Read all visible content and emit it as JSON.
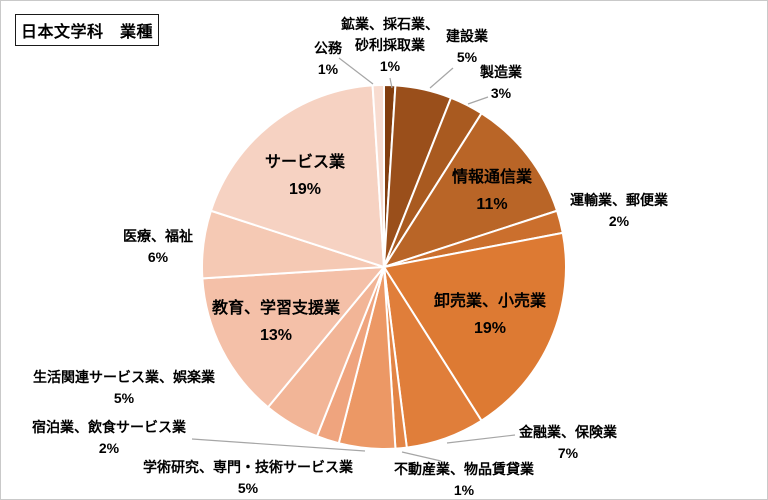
{
  "title": "日本文学科　業種",
  "chart_data": {
    "type": "pie",
    "title": "日本文学科　業種",
    "unit": "%",
    "total_percent": 100,
    "start_angle_deg": 0,
    "direction": "clockwise",
    "gap_stroke_color": "#ffffff",
    "leader_line_color": "#a6a6a6",
    "slices": [
      {
        "label": "鉱業、採石業、砂利採取業",
        "label_lines": [
          "鉱業、採石業、",
          "砂利採取業"
        ],
        "value": 1,
        "pct_label": "1%",
        "color": "#823d0e",
        "label_position": "outside"
      },
      {
        "label": "建設業",
        "value": 5,
        "pct_label": "5%",
        "color": "#9a4f1b",
        "label_position": "outside"
      },
      {
        "label": "製造業",
        "value": 3,
        "pct_label": "3%",
        "color": "#a95a20",
        "label_position": "outside"
      },
      {
        "label": "情報通信業",
        "value": 11,
        "pct_label": "11%",
        "color": "#b96527",
        "label_position": "inside"
      },
      {
        "label": "運輸業、郵便業",
        "value": 2,
        "pct_label": "2%",
        "color": "#cb6f2d",
        "label_position": "outside"
      },
      {
        "label": "卸売業、小売業",
        "value": 19,
        "pct_label": "19%",
        "color": "#dd7a33",
        "label_position": "inside"
      },
      {
        "label": "金融業、保険業",
        "value": 7,
        "pct_label": "7%",
        "color": "#e07e3a",
        "label_position": "outside"
      },
      {
        "label": "不動産業、物品賃貸業",
        "value": 1,
        "pct_label": "1%",
        "color": "#e38546",
        "label_position": "outside"
      },
      {
        "label": "学術研究、専門・技術サービス業",
        "value": 5,
        "pct_label": "5%",
        "color": "#ec9865",
        "label_position": "outside"
      },
      {
        "label": "宿泊業、飲食サービス業",
        "value": 2,
        "pct_label": "2%",
        "color": "#efa47e",
        "label_position": "outside"
      },
      {
        "label": "生活関連サービス業、娯楽業",
        "value": 5,
        "pct_label": "5%",
        "color": "#f2b597",
        "label_position": "outside"
      },
      {
        "label": "教育、学習支援業",
        "value": 13,
        "pct_label": "13%",
        "color": "#f4c0a8",
        "label_position": "inside"
      },
      {
        "label": "医療、福祉",
        "value": 6,
        "pct_label": "6%",
        "color": "#f5c9b4",
        "label_position": "outside"
      },
      {
        "label": "サービス業",
        "value": 19,
        "pct_label": "19%",
        "color": "#f6d2c2",
        "label_position": "inside"
      },
      {
        "label": "公務",
        "value": 1,
        "pct_label": "1%",
        "color": "#f8dcd0",
        "label_position": "outside"
      }
    ]
  }
}
